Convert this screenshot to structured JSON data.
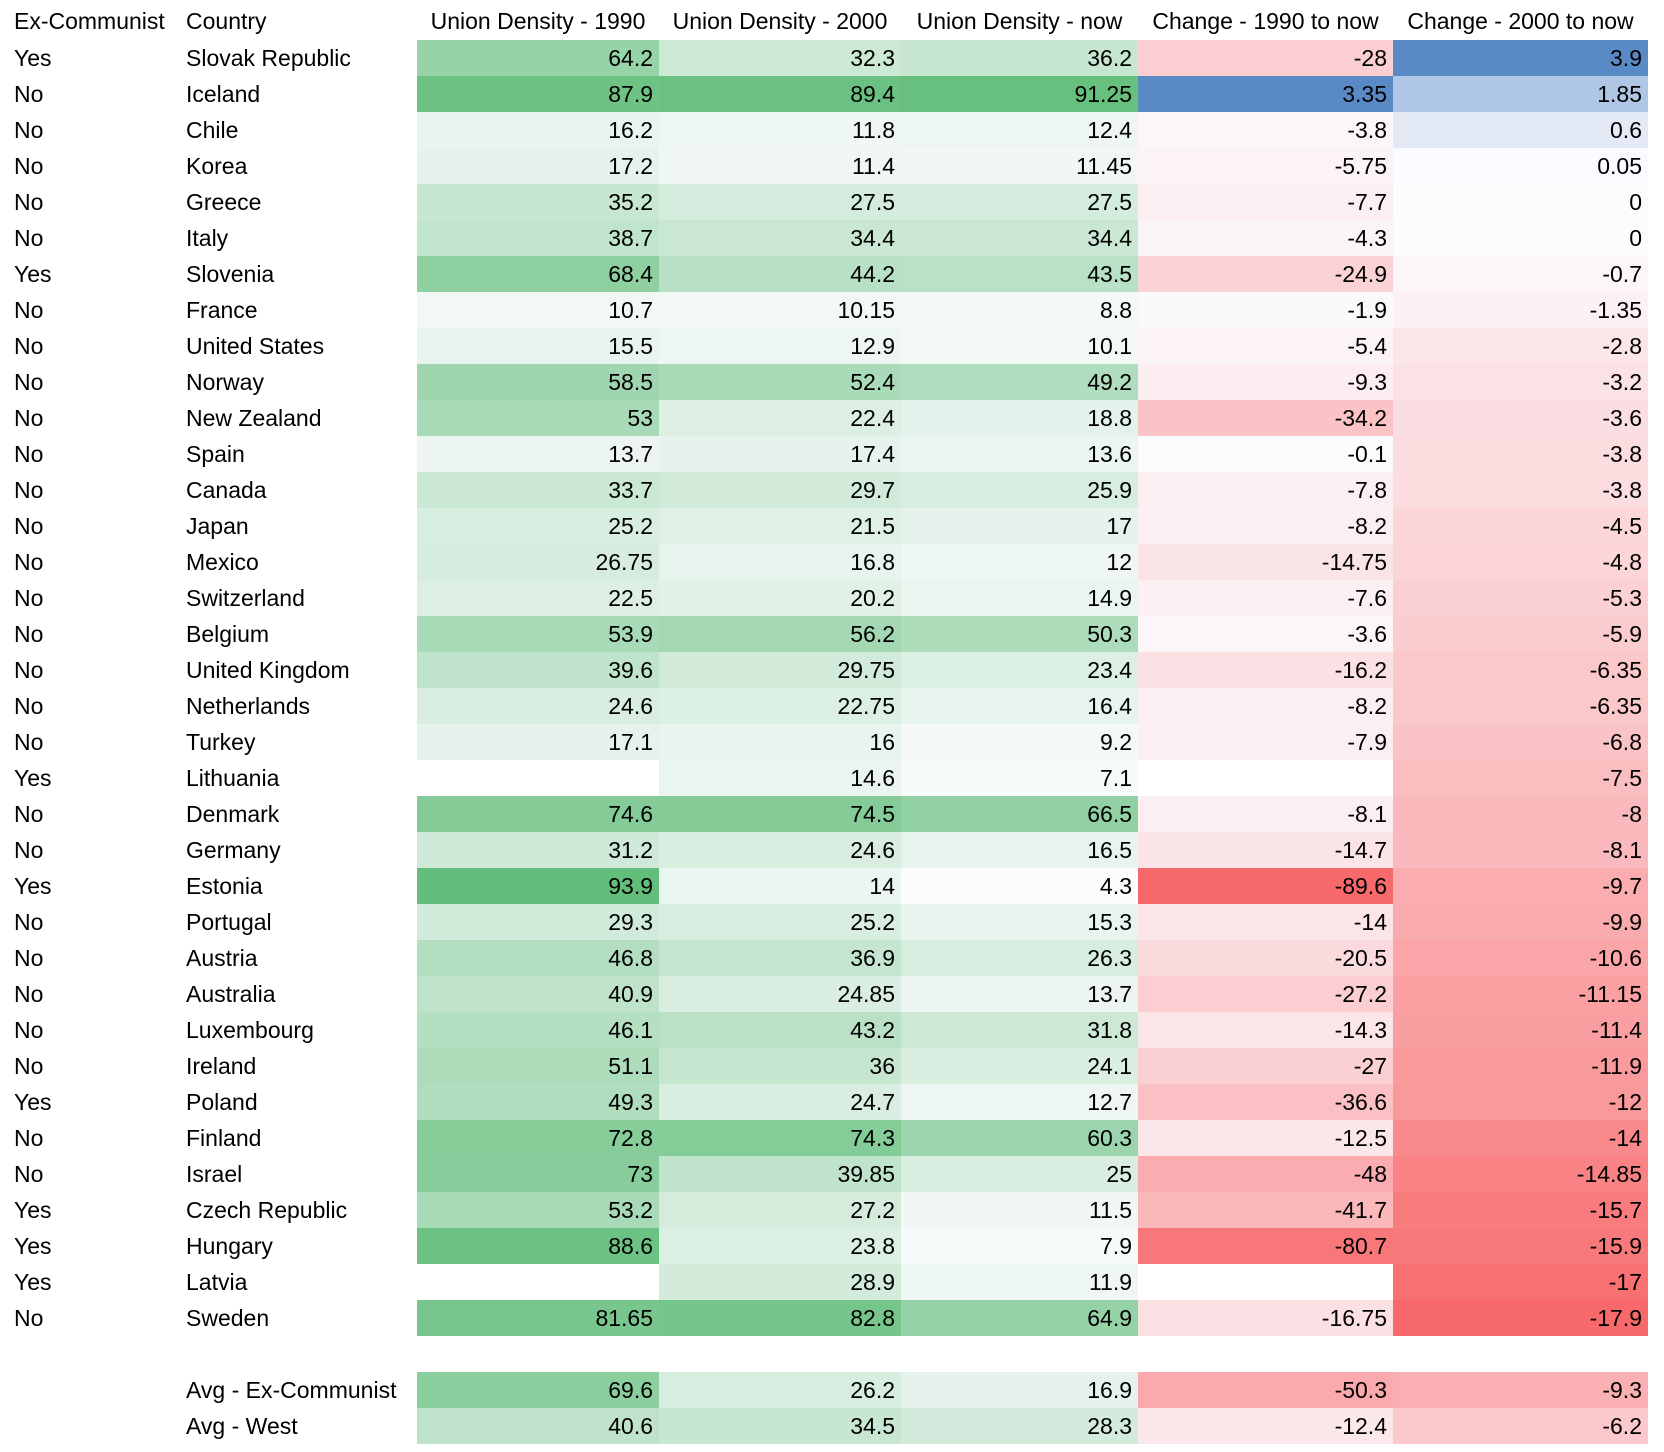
{
  "headers": {
    "ex_communist": "Ex-Communist",
    "country": "Country",
    "density_1990": "Union Density - 1990",
    "density_2000": "Union Density - 2000",
    "density_now": "Union Density - now",
    "change_1990": "Change - 1990 to now",
    "change_2000": "Change - 2000 to now"
  },
  "colors": {
    "green_max": "#63be7b",
    "red_max": "#f8696b",
    "blue_max": "#5a8ac6",
    "neutral": "#fcfcff"
  },
  "chart_data": {
    "type": "table",
    "columns": [
      "Ex-Communist",
      "Country",
      "Union Density - 1990",
      "Union Density - 2000",
      "Union Density - now",
      "Change - 1990 to now",
      "Change - 2000 to now"
    ],
    "rows": [
      {
        "ex": "Yes",
        "country": "Slovak Republic",
        "d90": "64.2",
        "d00": "32.3",
        "dnow": "36.2",
        "c90": "-28",
        "c00": "3.9"
      },
      {
        "ex": "No",
        "country": "Iceland",
        "d90": "87.9",
        "d00": "89.4",
        "dnow": "91.25",
        "c90": "3.35",
        "c00": "1.85"
      },
      {
        "ex": "No",
        "country": "Chile",
        "d90": "16.2",
        "d00": "11.8",
        "dnow": "12.4",
        "c90": "-3.8",
        "c00": "0.6"
      },
      {
        "ex": "No",
        "country": "Korea",
        "d90": "17.2",
        "d00": "11.4",
        "dnow": "11.45",
        "c90": "-5.75",
        "c00": "0.05"
      },
      {
        "ex": "No",
        "country": "Greece",
        "d90": "35.2",
        "d00": "27.5",
        "dnow": "27.5",
        "c90": "-7.7",
        "c00": "0"
      },
      {
        "ex": "No",
        "country": "Italy",
        "d90": "38.7",
        "d00": "34.4",
        "dnow": "34.4",
        "c90": "-4.3",
        "c00": "0"
      },
      {
        "ex": "Yes",
        "country": "Slovenia",
        "d90": "68.4",
        "d00": "44.2",
        "dnow": "43.5",
        "c90": "-24.9",
        "c00": "-0.7"
      },
      {
        "ex": "No",
        "country": "France",
        "d90": "10.7",
        "d00": "10.15",
        "dnow": "8.8",
        "c90": "-1.9",
        "c00": "-1.35"
      },
      {
        "ex": "No",
        "country": "United States",
        "d90": "15.5",
        "d00": "12.9",
        "dnow": "10.1",
        "c90": "-5.4",
        "c00": "-2.8"
      },
      {
        "ex": "No",
        "country": "Norway",
        "d90": "58.5",
        "d00": "52.4",
        "dnow": "49.2",
        "c90": "-9.3",
        "c00": "-3.2"
      },
      {
        "ex": "No",
        "country": "New Zealand",
        "d90": "53",
        "d00": "22.4",
        "dnow": "18.8",
        "c90": "-34.2",
        "c00": "-3.6"
      },
      {
        "ex": "No",
        "country": "Spain",
        "d90": "13.7",
        "d00": "17.4",
        "dnow": "13.6",
        "c90": "-0.1",
        "c00": "-3.8"
      },
      {
        "ex": "No",
        "country": "Canada",
        "d90": "33.7",
        "d00": "29.7",
        "dnow": "25.9",
        "c90": "-7.8",
        "c00": "-3.8"
      },
      {
        "ex": "No",
        "country": "Japan",
        "d90": "25.2",
        "d00": "21.5",
        "dnow": "17",
        "c90": "-8.2",
        "c00": "-4.5"
      },
      {
        "ex": "No",
        "country": "Mexico",
        "d90": "26.75",
        "d00": "16.8",
        "dnow": "12",
        "c90": "-14.75",
        "c00": "-4.8"
      },
      {
        "ex": "No",
        "country": "Switzerland",
        "d90": "22.5",
        "d00": "20.2",
        "dnow": "14.9",
        "c90": "-7.6",
        "c00": "-5.3"
      },
      {
        "ex": "No",
        "country": "Belgium",
        "d90": "53.9",
        "d00": "56.2",
        "dnow": "50.3",
        "c90": "-3.6",
        "c00": "-5.9"
      },
      {
        "ex": "No",
        "country": "United Kingdom",
        "d90": "39.6",
        "d00": "29.75",
        "dnow": "23.4",
        "c90": "-16.2",
        "c00": "-6.35"
      },
      {
        "ex": "No",
        "country": "Netherlands",
        "d90": "24.6",
        "d00": "22.75",
        "dnow": "16.4",
        "c90": "-8.2",
        "c00": "-6.35"
      },
      {
        "ex": "No",
        "country": "Turkey",
        "d90": "17.1",
        "d00": "16",
        "dnow": "9.2",
        "c90": "-7.9",
        "c00": "-6.8"
      },
      {
        "ex": "Yes",
        "country": "Lithuania",
        "d90": "",
        "d00": "14.6",
        "dnow": "7.1",
        "c90": "",
        "c00": "-7.5"
      },
      {
        "ex": "No",
        "country": "Denmark",
        "d90": "74.6",
        "d00": "74.5",
        "dnow": "66.5",
        "c90": "-8.1",
        "c00": "-8"
      },
      {
        "ex": "No",
        "country": "Germany",
        "d90": "31.2",
        "d00": "24.6",
        "dnow": "16.5",
        "c90": "-14.7",
        "c00": "-8.1"
      },
      {
        "ex": "Yes",
        "country": "Estonia",
        "d90": "93.9",
        "d00": "14",
        "dnow": "4.3",
        "c90": "-89.6",
        "c00": "-9.7"
      },
      {
        "ex": "No",
        "country": "Portugal",
        "d90": "29.3",
        "d00": "25.2",
        "dnow": "15.3",
        "c90": "-14",
        "c00": "-9.9"
      },
      {
        "ex": "No",
        "country": "Austria",
        "d90": "46.8",
        "d00": "36.9",
        "dnow": "26.3",
        "c90": "-20.5",
        "c00": "-10.6"
      },
      {
        "ex": "No",
        "country": "Australia",
        "d90": "40.9",
        "d00": "24.85",
        "dnow": "13.7",
        "c90": "-27.2",
        "c00": "-11.15"
      },
      {
        "ex": "No",
        "country": "Luxembourg",
        "d90": "46.1",
        "d00": "43.2",
        "dnow": "31.8",
        "c90": "-14.3",
        "c00": "-11.4"
      },
      {
        "ex": "No",
        "country": "Ireland",
        "d90": "51.1",
        "d00": "36",
        "dnow": "24.1",
        "c90": "-27",
        "c00": "-11.9"
      },
      {
        "ex": "Yes",
        "country": "Poland",
        "d90": "49.3",
        "d00": "24.7",
        "dnow": "12.7",
        "c90": "-36.6",
        "c00": "-12"
      },
      {
        "ex": "No",
        "country": "Finland",
        "d90": "72.8",
        "d00": "74.3",
        "dnow": "60.3",
        "c90": "-12.5",
        "c00": "-14"
      },
      {
        "ex": "No",
        "country": "Israel",
        "d90": "73",
        "d00": "39.85",
        "dnow": "25",
        "c90": "-48",
        "c00": "-14.85"
      },
      {
        "ex": "Yes",
        "country": "Czech Republic",
        "d90": "53.2",
        "d00": "27.2",
        "dnow": "11.5",
        "c90": "-41.7",
        "c00": "-15.7"
      },
      {
        "ex": "Yes",
        "country": "Hungary",
        "d90": "88.6",
        "d00": "23.8",
        "dnow": "7.9",
        "c90": "-80.7",
        "c00": "-15.9"
      },
      {
        "ex": "Yes",
        "country": "Latvia",
        "d90": "",
        "d00": "28.9",
        "dnow": "11.9",
        "c90": "",
        "c00": "-17"
      },
      {
        "ex": "No",
        "country": "Sweden",
        "d90": "81.65",
        "d00": "82.8",
        "dnow": "64.9",
        "c90": "-16.75",
        "c00": "-17.9"
      }
    ],
    "averages": [
      {
        "ex": "",
        "country": "Avg - Ex-Communist",
        "d90": "69.6",
        "d00": "26.2",
        "dnow": "16.9",
        "c90": "-50.3",
        "c00": "-9.3"
      },
      {
        "ex": "",
        "country": "Avg - West",
        "d90": "40.6",
        "d00": "34.5",
        "dnow": "28.3",
        "c90": "-12.4",
        "c00": "-6.2"
      }
    ]
  }
}
